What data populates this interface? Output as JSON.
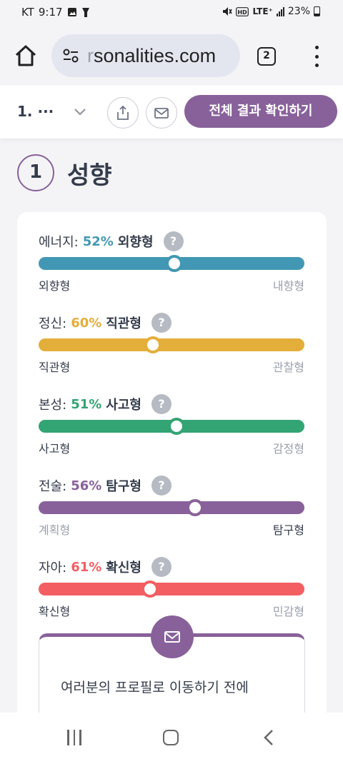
{
  "status_bar": {
    "carrier": "KT",
    "time": "9:17",
    "network": "LTE⁺",
    "battery": "23%",
    "icons": [
      "photo-icon",
      "flashlight-icon",
      "mute-icon",
      "hd-icon",
      "signal-icon",
      "battery-icon"
    ]
  },
  "browser": {
    "url_faded": "r",
    "url_text": "sonalities.com",
    "tab_count": "2",
    "icons": [
      "home-icon",
      "site-settings-icon",
      "more-menu-icon"
    ]
  },
  "nav": {
    "section_label": "1. ···",
    "cta_label": "전체 결과 확인하기",
    "icons": [
      "chevron-down-icon",
      "share-icon",
      "mail-icon"
    ]
  },
  "section": {
    "number": "1",
    "title": "성향"
  },
  "traits": [
    {
      "name": "에너지:",
      "percent": "52%",
      "type": "외향형",
      "left_label": "외향형",
      "right_label": "내향형",
      "active_side": "left",
      "position_pct": 51,
      "color": "#4298b4"
    },
    {
      "name": "정신:",
      "percent": "60%",
      "type": "직관형",
      "left_label": "직관형",
      "right_label": "관찰형",
      "active_side": "left",
      "position_pct": 43,
      "color": "#e4ae3a"
    },
    {
      "name": "본성:",
      "percent": "51%",
      "type": "사고형",
      "left_label": "사고형",
      "right_label": "감정형",
      "active_side": "left",
      "position_pct": 52,
      "color": "#33a474"
    },
    {
      "name": "전술:",
      "percent": "56%",
      "type": "탐구형",
      "left_label": "계획형",
      "right_label": "탐구형",
      "active_side": "right",
      "position_pct": 59,
      "color": "#88619a"
    },
    {
      "name": "자아:",
      "percent": "61%",
      "type": "확신형",
      "left_label": "확신형",
      "right_label": "민감형",
      "active_side": "left",
      "position_pct": 42,
      "color": "#f25e62"
    }
  ],
  "help_label": "?",
  "message": {
    "text": "여러분의 프로필로 이동하기 전에"
  },
  "system_nav": {
    "icons": [
      "recent-apps-icon",
      "home-button-icon",
      "back-icon"
    ]
  }
}
